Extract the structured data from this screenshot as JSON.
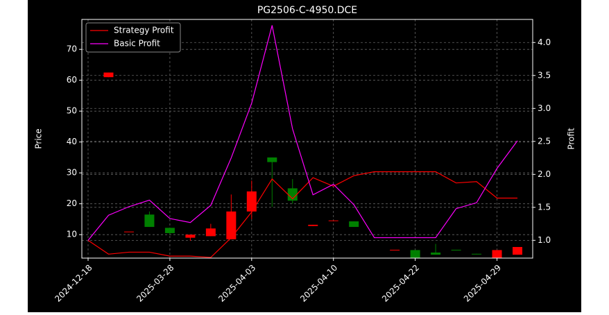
{
  "chart_data": {
    "type": "candlestick",
    "title": "PG2506-C-4950.DCE",
    "ylabel": "Price",
    "y2label": "Profit",
    "categories": [
      "2024-12-18",
      null,
      null,
      null,
      "2025-03-28",
      null,
      null,
      null,
      "2025-04-03",
      null,
      null,
      null,
      "2025-04-10",
      null,
      null,
      null,
      "2025-04-22",
      null,
      null,
      null,
      "2025-04-29",
      null
    ],
    "candles": {
      "up_color": "#ff0000",
      "down_color": "#008000",
      "open": [
        null,
        61,
        11,
        16.5,
        12.2,
        9,
        9.5,
        8.5,
        17.5,
        35,
        25,
        12.8,
        14.4,
        14.3,
        null,
        4.9,
        5,
        4.2,
        5.1,
        3.8,
        2.5,
        3.5
      ],
      "high": [
        null,
        62.5,
        11,
        17.5,
        12.2,
        10,
        13.5,
        23,
        27.5,
        35,
        28,
        13.2,
        14.6,
        14.3,
        null,
        5.1,
        5,
        7,
        5.1,
        3.8,
        5,
        6
      ],
      "low": [
        null,
        61,
        11,
        12.5,
        10,
        8,
        9.5,
        8.5,
        15,
        19,
        20,
        12.8,
        14.4,
        12.5,
        null,
        4.9,
        2.4,
        3.5,
        4.9,
        3.6,
        2.5,
        3.5
      ],
      "close": [
        null,
        62.5,
        11,
        12.5,
        10.5,
        10,
        12,
        17.5,
        24,
        33.5,
        21,
        13.2,
        14.6,
        12.5,
        null,
        5.1,
        2.4,
        3.5,
        4.9,
        3.6,
        5,
        6
      ]
    },
    "series": [
      {
        "name": "Strategy Profit",
        "color": "#ff0000",
        "axis": "y2",
        "values": [
          1.0,
          0.79,
          0.82,
          0.82,
          0.76,
          0.76,
          0.74,
          1.04,
          1.43,
          1.93,
          1.63,
          1.95,
          1.82,
          1.98,
          2.04,
          2.04,
          2.04,
          2.04,
          1.87,
          1.89,
          1.64,
          1.64
        ]
      },
      {
        "name": "Basic Profit",
        "color": "#ff00ff",
        "axis": "y2",
        "values": [
          1.0,
          1.38,
          1.51,
          1.61,
          1.33,
          1.27,
          1.53,
          2.25,
          3.08,
          4.26,
          2.69,
          1.69,
          1.85,
          1.54,
          1.04,
          1.04,
          1.04,
          1.04,
          1.48,
          1.57,
          2.09,
          2.51
        ]
      }
    ],
    "ylim": [
      2.4,
      79.7
    ],
    "yticks": [
      10,
      20,
      30,
      40,
      50,
      60,
      70
    ],
    "y2lim": [
      0.73,
      4.35
    ],
    "y2ticks": [
      {
        "value": 1,
        "label": "1.0"
      },
      {
        "value": 1.5,
        "label": "1.5"
      },
      {
        "value": 2,
        "label": "2.0"
      },
      {
        "value": 2.5,
        "label": "2.5"
      },
      {
        "value": 3,
        "label": "3.0"
      },
      {
        "value": 3.5,
        "label": "3.5"
      },
      {
        "value": 4,
        "label": "4.0"
      }
    ],
    "grid": true,
    "legend": "upper left"
  }
}
